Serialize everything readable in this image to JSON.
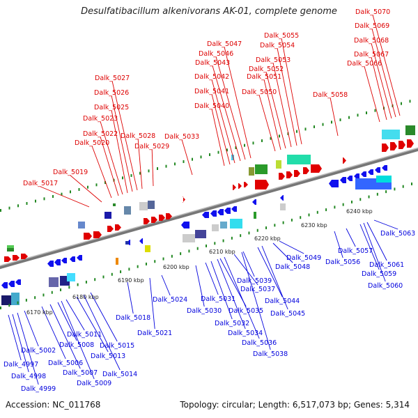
{
  "title": "Desulfatibacillum alkenivorans AK-01, complete genome",
  "footer": {
    "accession": "Accession: NC_011768",
    "topology": "Topology: circular; Length: 6,517,073 bp; Genes: 5,314"
  },
  "colors": {
    "forward_label": "#dd0000",
    "reverse_label": "#0000dd",
    "backbone": "#999999",
    "leader_fwd": "#dd0000",
    "leader_rev": "#0000dd",
    "tick_mark": "#228822"
  },
  "ticks": [
    "6170 kbp",
    "6180 kbp",
    "6190 kbp",
    "6200 kbp",
    "6210 kbp",
    "6220 kbp",
    "6230 kbp",
    "6240 kbp"
  ],
  "forward_genes": [
    "Dalk_5017",
    "Dalk_5019",
    "Dalk_5020",
    "Dalk_5022",
    "Dalk_5023",
    "Dalk_5025",
    "Dalk_5026",
    "Dalk_5027",
    "Dalk_5028",
    "Dalk_5029",
    "Dalk_5033",
    "Dalk_5040",
    "Dalk_5041",
    "Dalk_5042",
    "Dalk_5043",
    "Dalk_5046",
    "Dalk_5047",
    "Dalk_5050",
    "Dalk_5051",
    "Dalk_5052",
    "Dalk_5053",
    "Dalk_5054",
    "Dalk_5055",
    "Dalk_5058",
    "Dalk_5066",
    "Dalk_5067",
    "Dalk_5068",
    "Dalk_5069",
    "Dalk_5070"
  ],
  "reverse_genes": [
    "Dalk_4997",
    "Dalk_4998",
    "Dalk_4999",
    "Dalk_5002",
    "Dalk_5006",
    "Dalk_5007",
    "Dalk_5008",
    "Dalk_5009",
    "Dalk_5011",
    "Dalk_5013",
    "Dalk_5014",
    "Dalk_5015",
    "Dalk_5018",
    "Dalk_5021",
    "Dalk_5024",
    "Dalk_5030",
    "Dalk_5031",
    "Dalk_5032",
    "Dalk_5034",
    "Dalk_5035",
    "Dalk_5036",
    "Dalk_5037",
    "Dalk_5038",
    "Dalk_5039",
    "Dalk_5044",
    "Dalk_5045",
    "Dalk_5048",
    "Dalk_5049",
    "Dalk_5056",
    "Dalk_5057",
    "Dalk_5059",
    "Dalk_5060",
    "Dalk_5061",
    "Dalk_5063"
  ]
}
